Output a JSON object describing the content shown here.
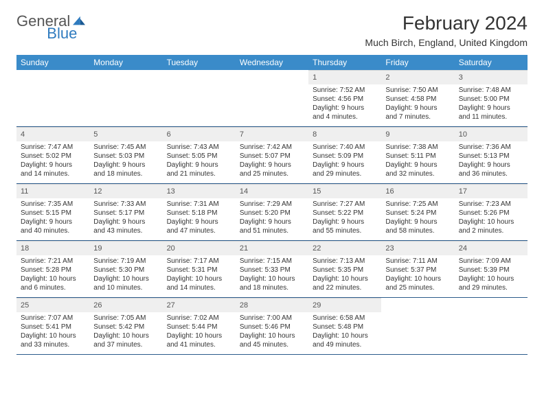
{
  "logo": {
    "word1": "General",
    "word2": "Blue"
  },
  "header": {
    "month_title": "February 2024",
    "location": "Much Birch, England, United Kingdom"
  },
  "colors": {
    "header_bg": "#3a8bc9",
    "header_text": "#ffffff",
    "daynum_bg": "#efefef",
    "week_border": "#2a5a8a",
    "text": "#333333"
  },
  "days_of_week": [
    "Sunday",
    "Monday",
    "Tuesday",
    "Wednesday",
    "Thursday",
    "Friday",
    "Saturday"
  ],
  "first_weekday_index": 4,
  "days": [
    {
      "n": "1",
      "sr": "Sunrise: 7:52 AM",
      "ss": "Sunset: 4:56 PM",
      "d1": "Daylight: 9 hours",
      "d2": "and 4 minutes."
    },
    {
      "n": "2",
      "sr": "Sunrise: 7:50 AM",
      "ss": "Sunset: 4:58 PM",
      "d1": "Daylight: 9 hours",
      "d2": "and 7 minutes."
    },
    {
      "n": "3",
      "sr": "Sunrise: 7:48 AM",
      "ss": "Sunset: 5:00 PM",
      "d1": "Daylight: 9 hours",
      "d2": "and 11 minutes."
    },
    {
      "n": "4",
      "sr": "Sunrise: 7:47 AM",
      "ss": "Sunset: 5:02 PM",
      "d1": "Daylight: 9 hours",
      "d2": "and 14 minutes."
    },
    {
      "n": "5",
      "sr": "Sunrise: 7:45 AM",
      "ss": "Sunset: 5:03 PM",
      "d1": "Daylight: 9 hours",
      "d2": "and 18 minutes."
    },
    {
      "n": "6",
      "sr": "Sunrise: 7:43 AM",
      "ss": "Sunset: 5:05 PM",
      "d1": "Daylight: 9 hours",
      "d2": "and 21 minutes."
    },
    {
      "n": "7",
      "sr": "Sunrise: 7:42 AM",
      "ss": "Sunset: 5:07 PM",
      "d1": "Daylight: 9 hours",
      "d2": "and 25 minutes."
    },
    {
      "n": "8",
      "sr": "Sunrise: 7:40 AM",
      "ss": "Sunset: 5:09 PM",
      "d1": "Daylight: 9 hours",
      "d2": "and 29 minutes."
    },
    {
      "n": "9",
      "sr": "Sunrise: 7:38 AM",
      "ss": "Sunset: 5:11 PM",
      "d1": "Daylight: 9 hours",
      "d2": "and 32 minutes."
    },
    {
      "n": "10",
      "sr": "Sunrise: 7:36 AM",
      "ss": "Sunset: 5:13 PM",
      "d1": "Daylight: 9 hours",
      "d2": "and 36 minutes."
    },
    {
      "n": "11",
      "sr": "Sunrise: 7:35 AM",
      "ss": "Sunset: 5:15 PM",
      "d1": "Daylight: 9 hours",
      "d2": "and 40 minutes."
    },
    {
      "n": "12",
      "sr": "Sunrise: 7:33 AM",
      "ss": "Sunset: 5:17 PM",
      "d1": "Daylight: 9 hours",
      "d2": "and 43 minutes."
    },
    {
      "n": "13",
      "sr": "Sunrise: 7:31 AM",
      "ss": "Sunset: 5:18 PM",
      "d1": "Daylight: 9 hours",
      "d2": "and 47 minutes."
    },
    {
      "n": "14",
      "sr": "Sunrise: 7:29 AM",
      "ss": "Sunset: 5:20 PM",
      "d1": "Daylight: 9 hours",
      "d2": "and 51 minutes."
    },
    {
      "n": "15",
      "sr": "Sunrise: 7:27 AM",
      "ss": "Sunset: 5:22 PM",
      "d1": "Daylight: 9 hours",
      "d2": "and 55 minutes."
    },
    {
      "n": "16",
      "sr": "Sunrise: 7:25 AM",
      "ss": "Sunset: 5:24 PM",
      "d1": "Daylight: 9 hours",
      "d2": "and 58 minutes."
    },
    {
      "n": "17",
      "sr": "Sunrise: 7:23 AM",
      "ss": "Sunset: 5:26 PM",
      "d1": "Daylight: 10 hours",
      "d2": "and 2 minutes."
    },
    {
      "n": "18",
      "sr": "Sunrise: 7:21 AM",
      "ss": "Sunset: 5:28 PM",
      "d1": "Daylight: 10 hours",
      "d2": "and 6 minutes."
    },
    {
      "n": "19",
      "sr": "Sunrise: 7:19 AM",
      "ss": "Sunset: 5:30 PM",
      "d1": "Daylight: 10 hours",
      "d2": "and 10 minutes."
    },
    {
      "n": "20",
      "sr": "Sunrise: 7:17 AM",
      "ss": "Sunset: 5:31 PM",
      "d1": "Daylight: 10 hours",
      "d2": "and 14 minutes."
    },
    {
      "n": "21",
      "sr": "Sunrise: 7:15 AM",
      "ss": "Sunset: 5:33 PM",
      "d1": "Daylight: 10 hours",
      "d2": "and 18 minutes."
    },
    {
      "n": "22",
      "sr": "Sunrise: 7:13 AM",
      "ss": "Sunset: 5:35 PM",
      "d1": "Daylight: 10 hours",
      "d2": "and 22 minutes."
    },
    {
      "n": "23",
      "sr": "Sunrise: 7:11 AM",
      "ss": "Sunset: 5:37 PM",
      "d1": "Daylight: 10 hours",
      "d2": "and 25 minutes."
    },
    {
      "n": "24",
      "sr": "Sunrise: 7:09 AM",
      "ss": "Sunset: 5:39 PM",
      "d1": "Daylight: 10 hours",
      "d2": "and 29 minutes."
    },
    {
      "n": "25",
      "sr": "Sunrise: 7:07 AM",
      "ss": "Sunset: 5:41 PM",
      "d1": "Daylight: 10 hours",
      "d2": "and 33 minutes."
    },
    {
      "n": "26",
      "sr": "Sunrise: 7:05 AM",
      "ss": "Sunset: 5:42 PM",
      "d1": "Daylight: 10 hours",
      "d2": "and 37 minutes."
    },
    {
      "n": "27",
      "sr": "Sunrise: 7:02 AM",
      "ss": "Sunset: 5:44 PM",
      "d1": "Daylight: 10 hours",
      "d2": "and 41 minutes."
    },
    {
      "n": "28",
      "sr": "Sunrise: 7:00 AM",
      "ss": "Sunset: 5:46 PM",
      "d1": "Daylight: 10 hours",
      "d2": "and 45 minutes."
    },
    {
      "n": "29",
      "sr": "Sunrise: 6:58 AM",
      "ss": "Sunset: 5:48 PM",
      "d1": "Daylight: 10 hours",
      "d2": "and 49 minutes."
    }
  ]
}
